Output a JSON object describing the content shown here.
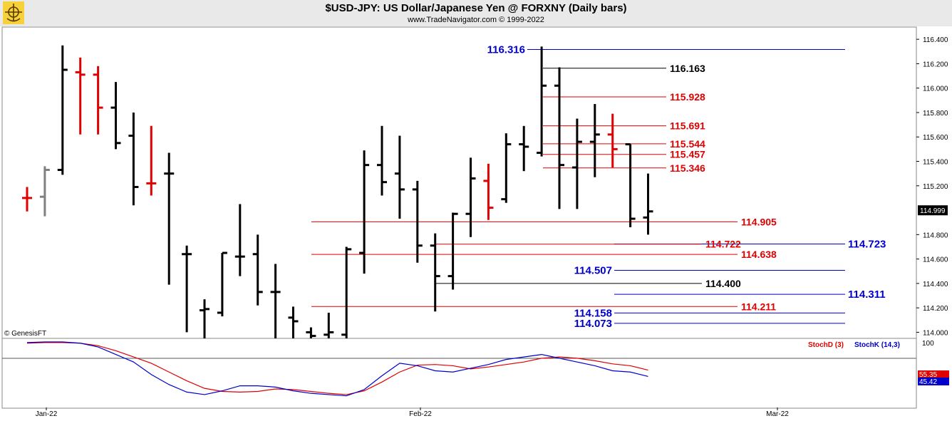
{
  "header": {
    "title": "$USD-JPY:  US Dollar/Japanese Yen @ FORXNY  (Daily bars)",
    "subtitle": "www.TradeNavigator.com © 1999-2022",
    "logo_icon": "trade-navigator-logo-icon"
  },
  "copyright": "© GenesisFT",
  "colors": {
    "up_bar": "#000000",
    "down_bar": "#e00000",
    "neutral_bar": "#808080",
    "stoch_d": "#e00000",
    "stoch_k": "#0000cc",
    "level_red": "#e00000",
    "level_blue": "#0000cc",
    "level_black": "#000000"
  },
  "chart_data": [
    {
      "type": "ohlc",
      "ylim": [
        113.95,
        116.5
      ],
      "y_ticks": [
        "116.400",
        "116.200",
        "116.000",
        "115.800",
        "115.600",
        "115.400",
        "115.200",
        "114.800",
        "114.600",
        "114.400",
        "114.200",
        "114.000"
      ],
      "last_price_label": "114.999",
      "x_ticks": [
        "Jan-22",
        "Feb-22",
        "Mar-22"
      ],
      "bars": [
        {
          "o": 115.1,
          "h": 115.19,
          "l": 114.99,
          "c": 115.1,
          "color": "red"
        },
        {
          "o": 115.11,
          "h": 115.36,
          "l": 114.95,
          "c": 115.33,
          "color": "gray"
        },
        {
          "o": 115.33,
          "h": 116.35,
          "l": 115.29,
          "c": 116.15,
          "color": "black"
        },
        {
          "o": 116.13,
          "h": 116.25,
          "l": 115.62,
          "c": 116.11,
          "color": "red"
        },
        {
          "o": 116.11,
          "h": 116.18,
          "l": 115.62,
          "c": 115.84,
          "color": "red"
        },
        {
          "o": 115.84,
          "h": 116.05,
          "l": 115.5,
          "c": 115.55,
          "color": "black"
        },
        {
          "o": 115.61,
          "h": 115.8,
          "l": 115.04,
          "c": 115.19,
          "color": "black"
        },
        {
          "o": 115.22,
          "h": 115.69,
          "l": 115.12,
          "c": 115.22,
          "color": "red"
        },
        {
          "o": 115.3,
          "h": 115.47,
          "l": 114.39,
          "c": 115.3,
          "color": "black"
        },
        {
          "o": 114.64,
          "h": 114.71,
          "l": 114.0,
          "c": 114.64,
          "color": "black"
        },
        {
          "o": 114.18,
          "h": 114.27,
          "l": 113.95,
          "c": 114.19,
          "color": "black"
        },
        {
          "o": 114.16,
          "h": 114.65,
          "l": 114.13,
          "c": 114.65,
          "color": "black"
        },
        {
          "o": 114.62,
          "h": 115.05,
          "l": 114.46,
          "c": 114.62,
          "color": "black"
        },
        {
          "o": 114.64,
          "h": 114.8,
          "l": 114.22,
          "c": 114.33,
          "color": "black"
        },
        {
          "o": 114.33,
          "h": 114.56,
          "l": 113.95,
          "c": 114.33,
          "color": "black"
        },
        {
          "o": 114.12,
          "h": 114.21,
          "l": 113.95,
          "c": 114.09,
          "color": "black"
        },
        {
          "o": 114.0,
          "h": 114.04,
          "l": 113.95,
          "c": 113.97,
          "color": "black"
        },
        {
          "o": 113.98,
          "h": 114.16,
          "l": 113.95,
          "c": 114.0,
          "color": "black"
        },
        {
          "o": 113.98,
          "h": 114.7,
          "l": 113.95,
          "c": 114.68,
          "color": "black"
        },
        {
          "o": 114.65,
          "h": 115.49,
          "l": 114.48,
          "c": 115.37,
          "color": "black"
        },
        {
          "o": 115.37,
          "h": 115.69,
          "l": 115.12,
          "c": 115.23,
          "color": "black"
        },
        {
          "o": 115.3,
          "h": 115.61,
          "l": 114.93,
          "c": 115.17,
          "color": "black"
        },
        {
          "o": 115.17,
          "h": 115.24,
          "l": 114.57,
          "c": 114.71,
          "color": "black"
        },
        {
          "o": 114.71,
          "h": 114.81,
          "l": 114.17,
          "c": 114.46,
          "color": "black"
        },
        {
          "o": 114.46,
          "h": 114.98,
          "l": 114.35,
          "c": 114.97,
          "color": "black"
        },
        {
          "o": 114.97,
          "h": 115.43,
          "l": 114.78,
          "c": 115.26,
          "color": "black"
        },
        {
          "o": 115.24,
          "h": 115.38,
          "l": 114.92,
          "c": 115.02,
          "color": "red"
        },
        {
          "o": 115.09,
          "h": 115.63,
          "l": 115.06,
          "c": 115.54,
          "color": "black"
        },
        {
          "o": 115.54,
          "h": 115.69,
          "l": 115.32,
          "c": 115.52,
          "color": "black"
        },
        {
          "o": 115.47,
          "h": 116.34,
          "l": 115.44,
          "c": 116.02,
          "color": "black"
        },
        {
          "o": 116.02,
          "h": 116.17,
          "l": 115.01,
          "c": 115.37,
          "color": "black"
        },
        {
          "o": 115.35,
          "h": 115.75,
          "l": 115.01,
          "c": 115.56,
          "color": "black"
        },
        {
          "o": 115.56,
          "h": 115.87,
          "l": 115.27,
          "c": 115.62,
          "color": "black"
        },
        {
          "o": 115.62,
          "h": 115.79,
          "l": 115.35,
          "c": 115.5,
          "color": "red"
        },
        {
          "o": 115.54,
          "h": 115.54,
          "l": 114.86,
          "c": 114.93,
          "color": "black"
        },
        {
          "o": 114.94,
          "h": 115.3,
          "l": 114.8,
          "c": 114.99,
          "color": "black"
        }
      ],
      "levels": [
        {
          "value": 116.316,
          "label": "116.316",
          "color": "blue",
          "label_side": "left"
        },
        {
          "value": 116.163,
          "label": "116.163",
          "color": "black",
          "label_side": "right"
        },
        {
          "value": 115.928,
          "label": "115.928",
          "color": "red",
          "label_side": "right"
        },
        {
          "value": 115.691,
          "label": "115.691",
          "color": "red",
          "label_side": "right"
        },
        {
          "value": 115.544,
          "label": "115.544",
          "color": "red",
          "label_side": "right"
        },
        {
          "value": 115.457,
          "label": "115.457",
          "color": "red",
          "label_side": "right"
        },
        {
          "value": 115.346,
          "label": "115.346",
          "color": "red",
          "label_side": "right"
        },
        {
          "value": 114.905,
          "label": "114.905",
          "color": "red",
          "label_side": "right"
        },
        {
          "value": 114.723,
          "label": "114.723",
          "color": "blue",
          "label_side": "far-right"
        },
        {
          "value": 114.722,
          "label": "114.722",
          "color": "red",
          "label_side": "right"
        },
        {
          "value": 114.638,
          "label": "114.638",
          "color": "red",
          "label_side": "right"
        },
        {
          "value": 114.507,
          "label": "114.507",
          "color": "blue",
          "label_side": "left"
        },
        {
          "value": 114.4,
          "label": "114.400",
          "color": "black",
          "label_side": "right"
        },
        {
          "value": 114.311,
          "label": "114.311",
          "color": "blue",
          "label_side": "far-right"
        },
        {
          "value": 114.211,
          "label": "114.211",
          "color": "red",
          "label_side": "right"
        },
        {
          "value": 114.158,
          "label": "114.158",
          "color": "blue",
          "label_side": "left"
        },
        {
          "value": 114.073,
          "label": "114.073",
          "color": "blue",
          "label_side": "left"
        }
      ]
    },
    {
      "type": "line",
      "ylim": [
        0,
        100
      ],
      "y_tick": "100",
      "series": [
        {
          "name": "StochD (3)",
          "color": "red",
          "last_label": "55.35",
          "values": [
            98,
            99,
            99,
            98,
            94,
            86,
            76,
            66,
            52,
            38,
            26,
            21,
            20,
            21,
            25,
            24,
            21,
            18,
            16,
            22,
            36,
            52,
            63,
            64,
            62,
            57,
            60,
            64,
            68,
            74,
            76,
            74,
            70,
            65,
            62,
            55
          ]
        },
        {
          "name": "StochK (14,3)",
          "color": "blue",
          "last_label": "45.42",
          "values": [
            99,
            100,
            100,
            98,
            92,
            80,
            68,
            48,
            32,
            20,
            16,
            22,
            30,
            30,
            28,
            22,
            18,
            16,
            14,
            24,
            46,
            66,
            62,
            54,
            52,
            58,
            64,
            72,
            76,
            80,
            74,
            68,
            62,
            54,
            52,
            45
          ]
        }
      ]
    }
  ]
}
